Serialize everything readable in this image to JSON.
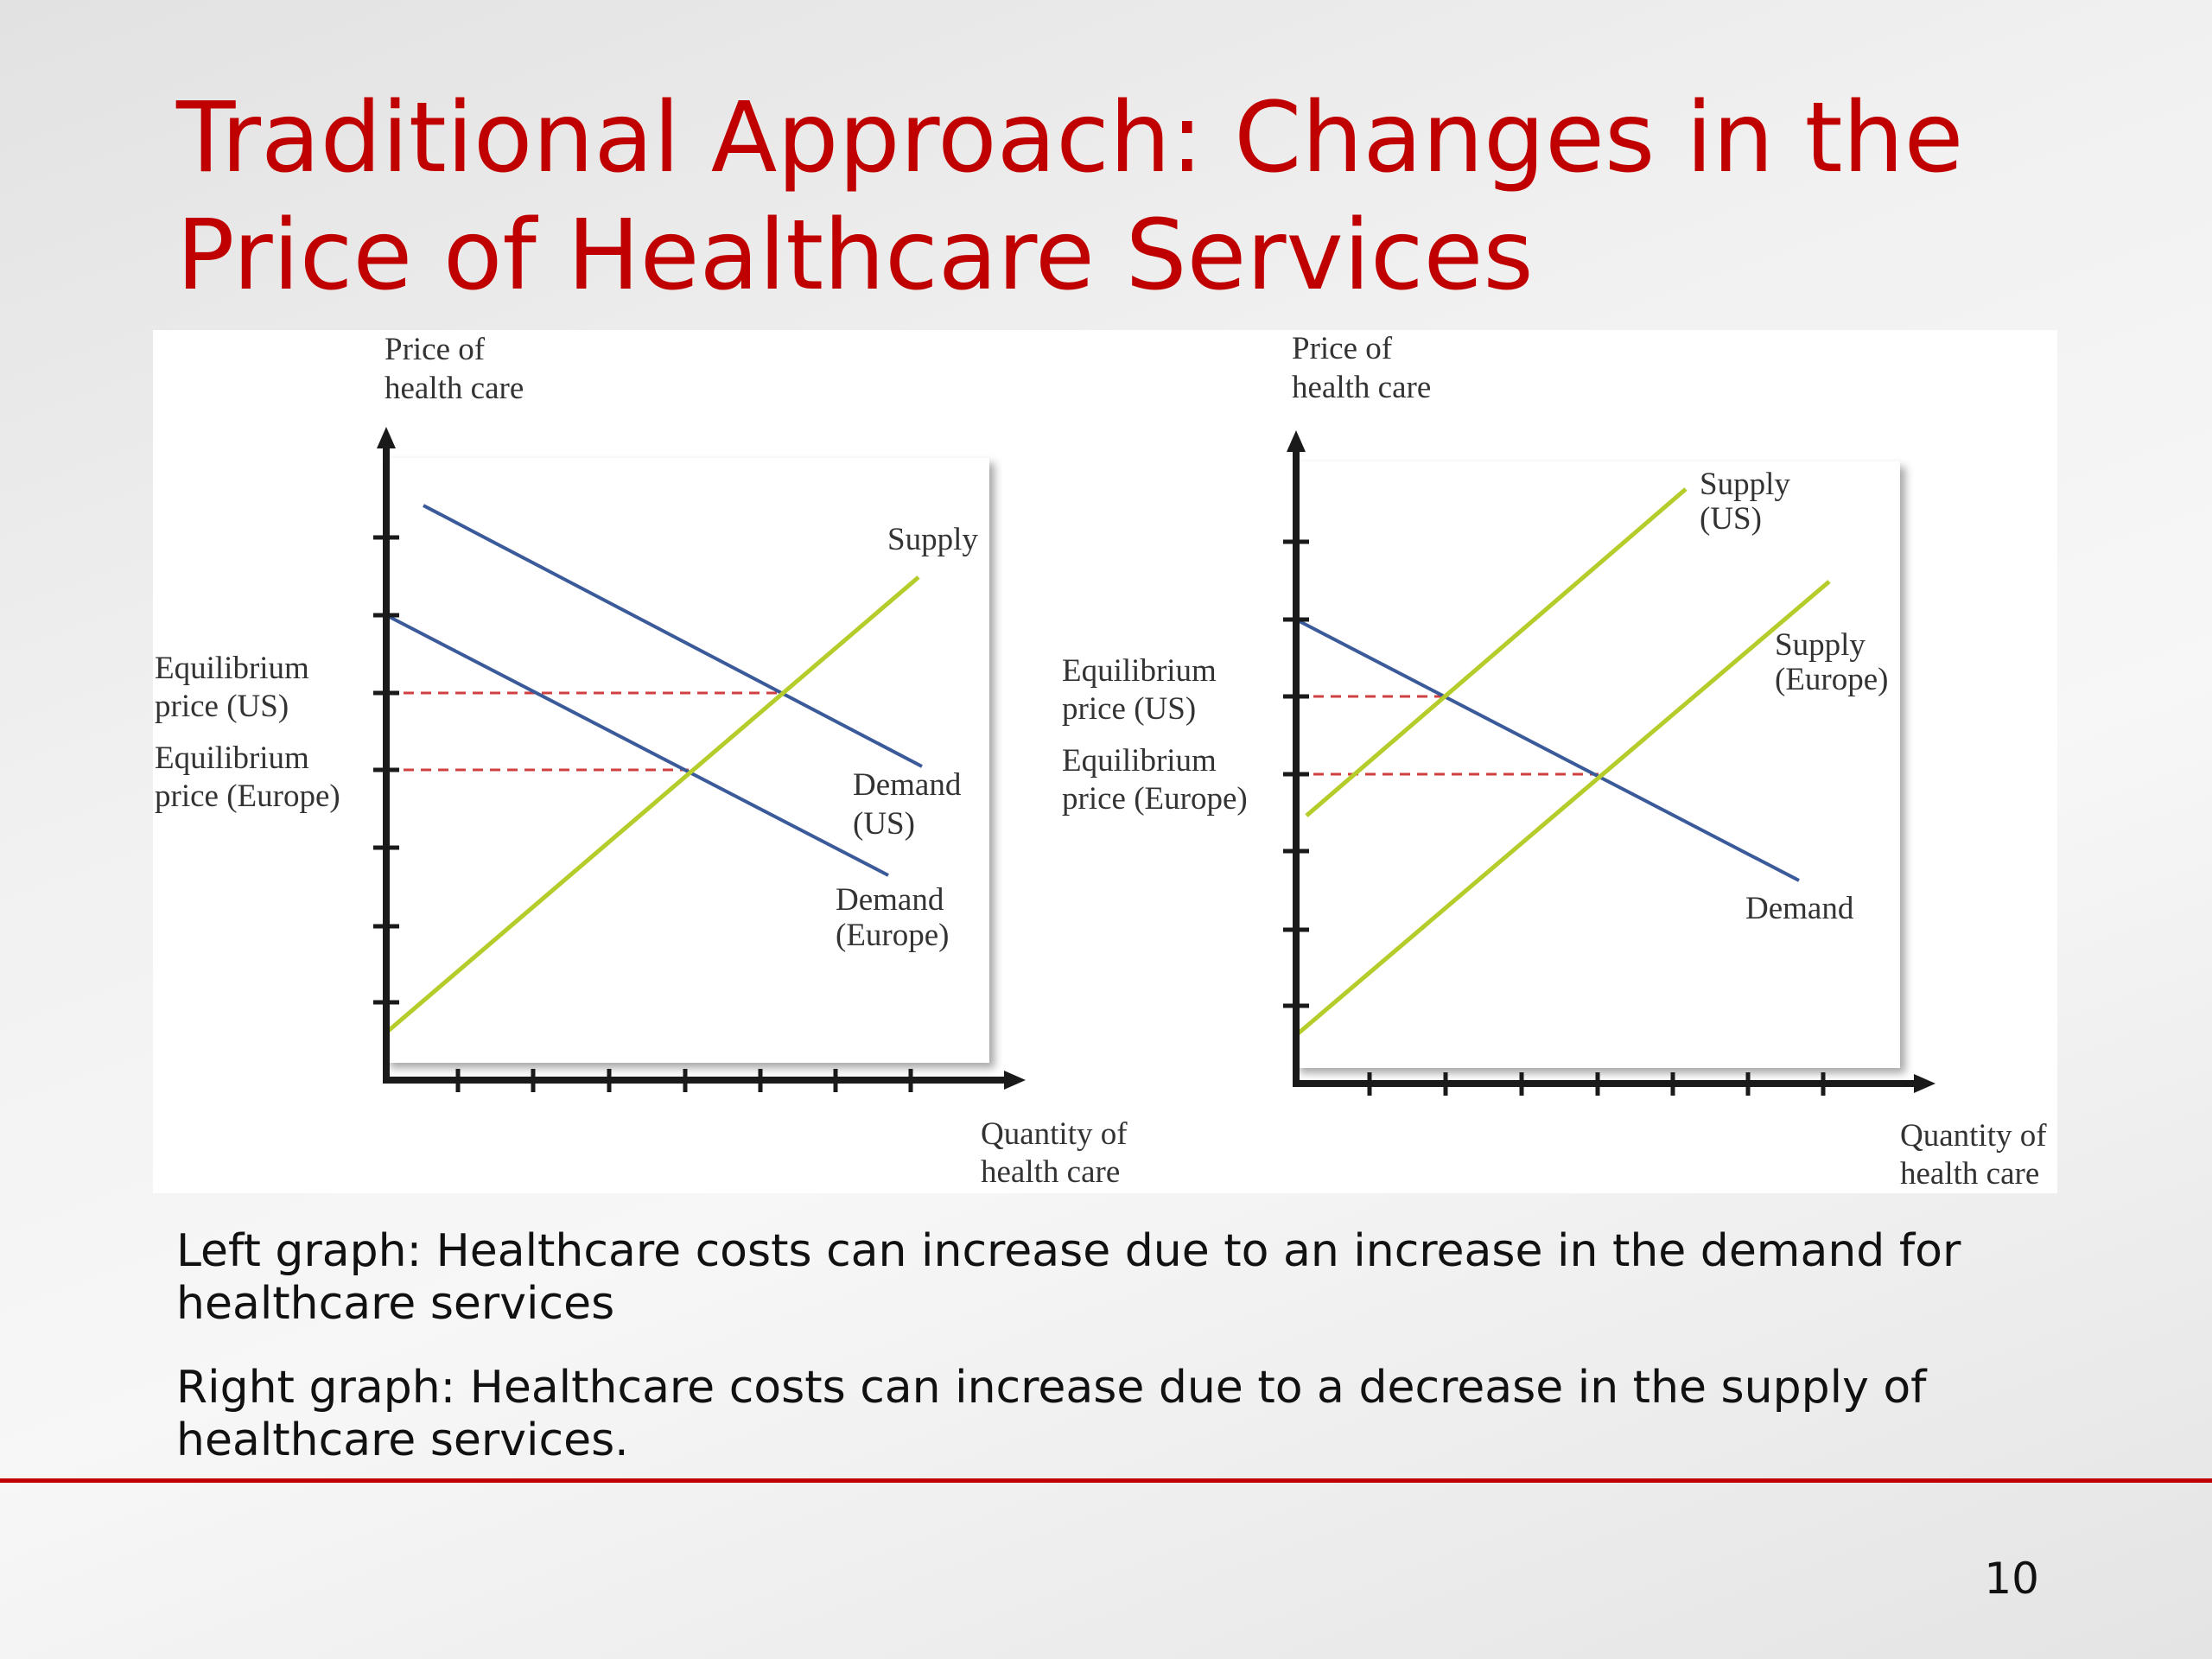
{
  "slide": {
    "title_line1": "Traditional Approach: Changes in the",
    "title_line2": "Price of Healthcare Services",
    "caption1_line1": "Left graph: Healthcare costs can increase due to an increase in the demand for",
    "caption1_line2": "healthcare services",
    "caption2_line1": "Right graph:  Healthcare costs can increase due to a decrease in the supply of",
    "caption2_line2": "healthcare services.",
    "page_number": "10",
    "accent_color": "#c00000"
  },
  "left_graph": {
    "y_axis_label_line1": "Price of",
    "y_axis_label_line2": "health care",
    "x_axis_label_line1": "Quantity of",
    "x_axis_label_line2": "health care",
    "eq_us_line1": "Equilibrium",
    "eq_us_line2": "price (US)",
    "eq_eu_line1": "Equilibrium",
    "eq_eu_line2": "price (Europe)",
    "supply_label": "Supply",
    "demand_us_line1": "Demand",
    "demand_us_line2": "(US)",
    "demand_eu_line1": "Demand",
    "demand_eu_line2": "(Europe)"
  },
  "right_graph": {
    "y_axis_label_line1": "Price of",
    "y_axis_label_line2": "health care",
    "x_axis_label_line1": "Quantity of",
    "x_axis_label_line2": "health care",
    "eq_us_line1": "Equilibrium",
    "eq_us_line2": "price (US)",
    "eq_eu_line1": "Equilibrium",
    "eq_eu_line2": "price (Europe)",
    "supply_us_line1": "Supply",
    "supply_us_line2": "(US)",
    "supply_eu_line1": "Supply",
    "supply_eu_line2": "(Europe)",
    "demand_label": "Demand"
  },
  "colors": {
    "demand_line": "#3a5a9a",
    "supply_line": "#b5cc2a",
    "equilibrium_dash": "#d04040",
    "axis": "#1a1a1a"
  }
}
